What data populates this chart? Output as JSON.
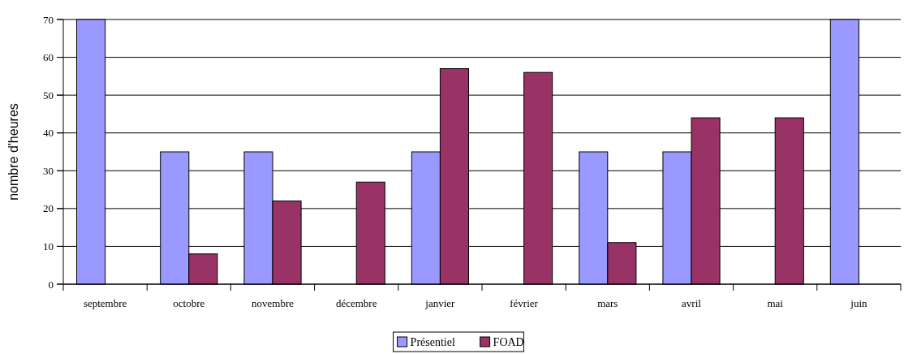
{
  "chart_data": {
    "type": "bar",
    "ylabel": "nombre d'heures",
    "categories": [
      "septembre",
      "octobre",
      "novembre",
      "décembre",
      "janvier",
      "février",
      "mars",
      "avril",
      "mai",
      "juin"
    ],
    "series": [
      {
        "name": "Présentiel",
        "color": "#9999ff",
        "values": [
          70,
          35,
          35,
          null,
          35,
          null,
          35,
          35,
          null,
          70
        ]
      },
      {
        "name": "FOAD",
        "color": "#993366",
        "values": [
          0,
          8,
          22,
          27,
          57,
          56,
          11,
          44,
          44,
          null
        ]
      }
    ],
    "ylim": [
      0,
      70
    ],
    "yticks": [
      0,
      10,
      20,
      30,
      40,
      50,
      60,
      70
    ],
    "grid": "y",
    "legend": "bottom"
  }
}
